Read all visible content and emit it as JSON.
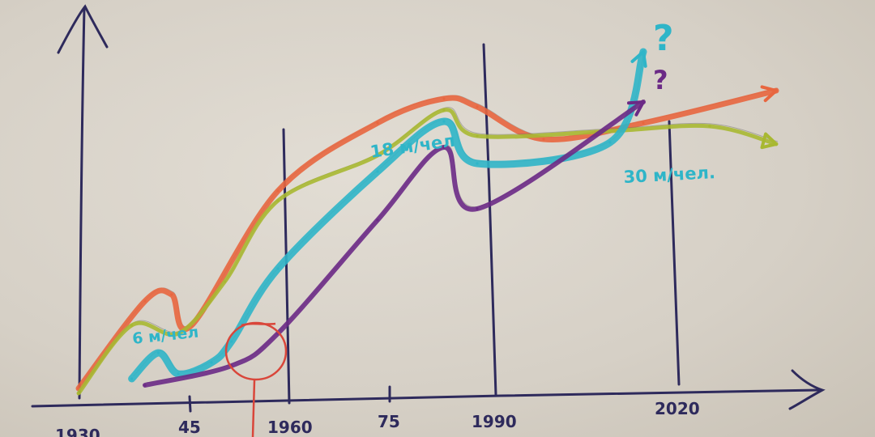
{
  "chart_data": {
    "type": "line",
    "title": "",
    "xlabel": "",
    "ylabel": "",
    "x_ticks": [
      "1930",
      "45",
      "1960",
      "75",
      "1990",
      "2020"
    ],
    "xlim": [
      1930,
      2035
    ],
    "annotations": {
      "cyan_rate_early": "6 м/чел",
      "cyan_rate_mid": "18 м/чел",
      "cyan_rate_late": "30 м/чел.",
      "question_cyan": "?",
      "question_purple": "?"
    },
    "colors": {
      "orange": "#e8663f",
      "green": "#a8b832",
      "cyan": "#2fb5c8",
      "purple": "#6b2a86",
      "ink": "#2e2a5c"
    },
    "series": [
      {
        "color": "orange",
        "x": [
          1930,
          1940,
          1944,
          1947,
          1960,
          1975,
          1985,
          1990,
          2000,
          2015,
          2035
        ],
        "y": [
          6,
          60,
          64,
          45,
          128,
          170,
          185,
          180,
          160,
          170,
          190
        ]
      },
      {
        "color": "green",
        "x": [
          1930,
          1938,
          1945,
          1952,
          1960,
          1975,
          1985,
          1990,
          2010,
          2025,
          2035
        ],
        "y": [
          3,
          45,
          40,
          72,
          122,
          150,
          178,
          162,
          165,
          168,
          157
        ]
      },
      {
        "color": "cyan",
        "x": [
          1938,
          1942,
          1945,
          1950,
          1953,
          1960,
          1975,
          1985,
          1990,
          2010,
          2015
        ],
        "y": [
          12,
          28,
          15,
          22,
          35,
          80,
          140,
          171,
          145,
          158,
          214
        ]
      },
      {
        "color": "purple",
        "x": [
          1940,
          1953,
          1960,
          1975,
          1985,
          1990,
          2015
        ],
        "y": [
          8,
          20,
          40,
          110,
          155,
          117,
          183
        ]
      }
    ]
  }
}
